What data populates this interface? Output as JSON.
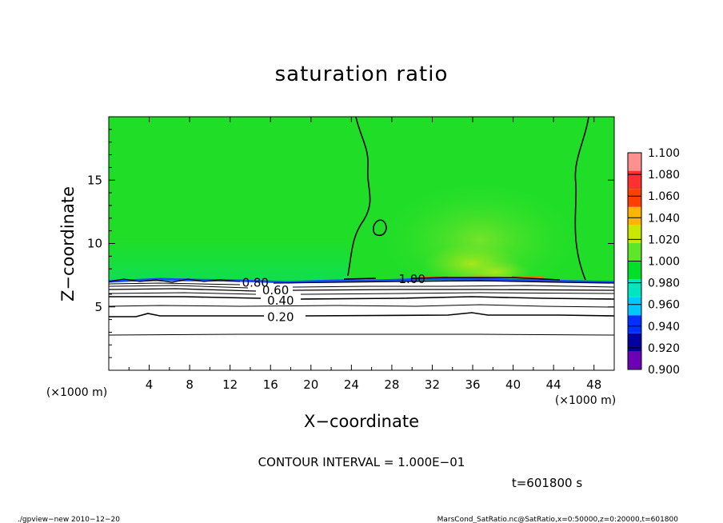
{
  "chart_data": {
    "type": "heatmap",
    "title": "saturation ratio",
    "xlabel": "X−coordinate",
    "ylabel": "Z−coordinate",
    "x_units": "(×1000 m)",
    "y_units": "(×1000 m)",
    "xlim": [
      0,
      50
    ],
    "ylim": [
      0,
      20
    ],
    "x_ticks": [
      "4",
      "8",
      "12",
      "16",
      "20",
      "24",
      "28",
      "32",
      "36",
      "40",
      "44",
      "48"
    ],
    "x_tick_values": [
      4,
      8,
      12,
      16,
      20,
      24,
      28,
      32,
      36,
      40,
      44,
      48
    ],
    "y_ticks": [
      "5",
      "10",
      "15"
    ],
    "y_tick_values": [
      5,
      10,
      15
    ],
    "colorbar": {
      "levels": [
        "0.900",
        "0.920",
        "0.940",
        "0.960",
        "0.980",
        "1.000",
        "1.020",
        "1.040",
        "1.060",
        "1.080",
        "1.100"
      ],
      "level_values": [
        0.9,
        0.92,
        0.94,
        0.96,
        0.98,
        1.0,
        1.02,
        1.04,
        1.06,
        1.08,
        1.1
      ],
      "colors": [
        "#6b00b4",
        "#0000a0",
        "#0030ff",
        "#00c8ff",
        "#00e6c0",
        "#00e028",
        "#5ee628",
        "#c8e800",
        "#ffb400",
        "#ff4000",
        "#ff3030",
        "#ff9090"
      ]
    },
    "contours": [
      {
        "label": "1.00",
        "x": 30,
        "z": 7.2
      },
      {
        "label": "0.80",
        "x": 14.5,
        "z": 6.9
      },
      {
        "label": "0.60",
        "x": 16.5,
        "z": 6.3
      },
      {
        "label": "0.40",
        "x": 17,
        "z": 5.5
      },
      {
        "label": "0.20",
        "x": 17,
        "z": 4.2
      }
    ],
    "annotations": {
      "contour_interval": "CONTOUR INTERVAL = 1.000E−01",
      "time": "t=601800 s",
      "footer_left": "./gpview−new  2010−12−20",
      "footer_right": "MarsCond_SatRatio.nc@SatRatio,x=0:50000,z=0:20000,t=601800"
    }
  }
}
